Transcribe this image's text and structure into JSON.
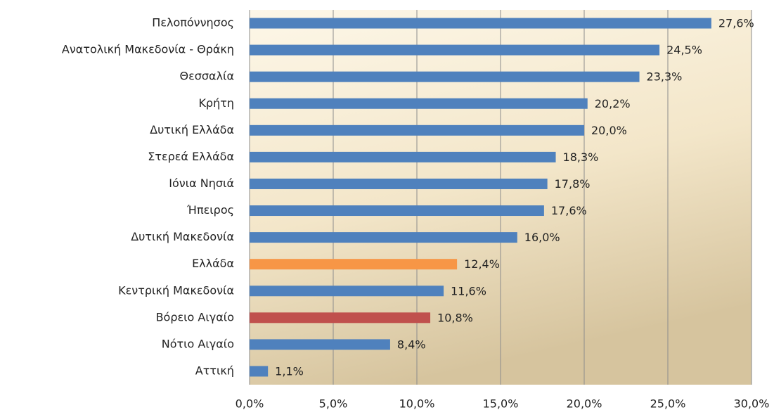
{
  "chart_data": {
    "type": "bar",
    "orientation": "horizontal",
    "categories": [
      "Πελοπόννησος",
      "Ανατολική Μακεδονία - Θράκη",
      "Θεσσαλία",
      "Κρήτη",
      "Δυτική Ελλάδα",
      "Στερεά Ελλάδα",
      "Ιόνια Νησιά",
      "Ήπειρος",
      "Δυτική Μακεδονία",
      "Ελλάδα",
      "Κεντρική Μακεδονία",
      "Βόρειο Αιγαίο",
      "Νότιο Αιγαίο",
      "Αττική"
    ],
    "values": [
      27.6,
      24.5,
      23.3,
      20.2,
      20.0,
      18.3,
      17.8,
      17.6,
      16.0,
      12.4,
      11.6,
      10.8,
      8.4,
      1.1
    ],
    "value_labels": [
      "27,6%",
      "24,5%",
      "23,3%",
      "20,2%",
      "20,0%",
      "18,3%",
      "17,8%",
      "17,6%",
      "16,0%",
      "12,4%",
      "11,6%",
      "10,8%",
      "8,4%",
      "1,1%"
    ],
    "colors": [
      "#4f81bd",
      "#4f81bd",
      "#4f81bd",
      "#4f81bd",
      "#4f81bd",
      "#4f81bd",
      "#4f81bd",
      "#4f81bd",
      "#4f81bd",
      "#f79646",
      "#4f81bd",
      "#c0504d",
      "#4f81bd",
      "#4f81bd"
    ],
    "xlim": [
      0,
      30
    ],
    "xticks": [
      {
        "value": 0,
        "label": "0,0%"
      },
      {
        "value": 5,
        "label": "5,0%"
      },
      {
        "value": 10,
        "label": "10,0%"
      },
      {
        "value": 15,
        "label": "15,0%"
      },
      {
        "value": 20,
        "label": "20,0%"
      },
      {
        "value": 25,
        "label": "25,0%"
      },
      {
        "value": 30,
        "label": "30,0%"
      }
    ],
    "grid": true
  }
}
